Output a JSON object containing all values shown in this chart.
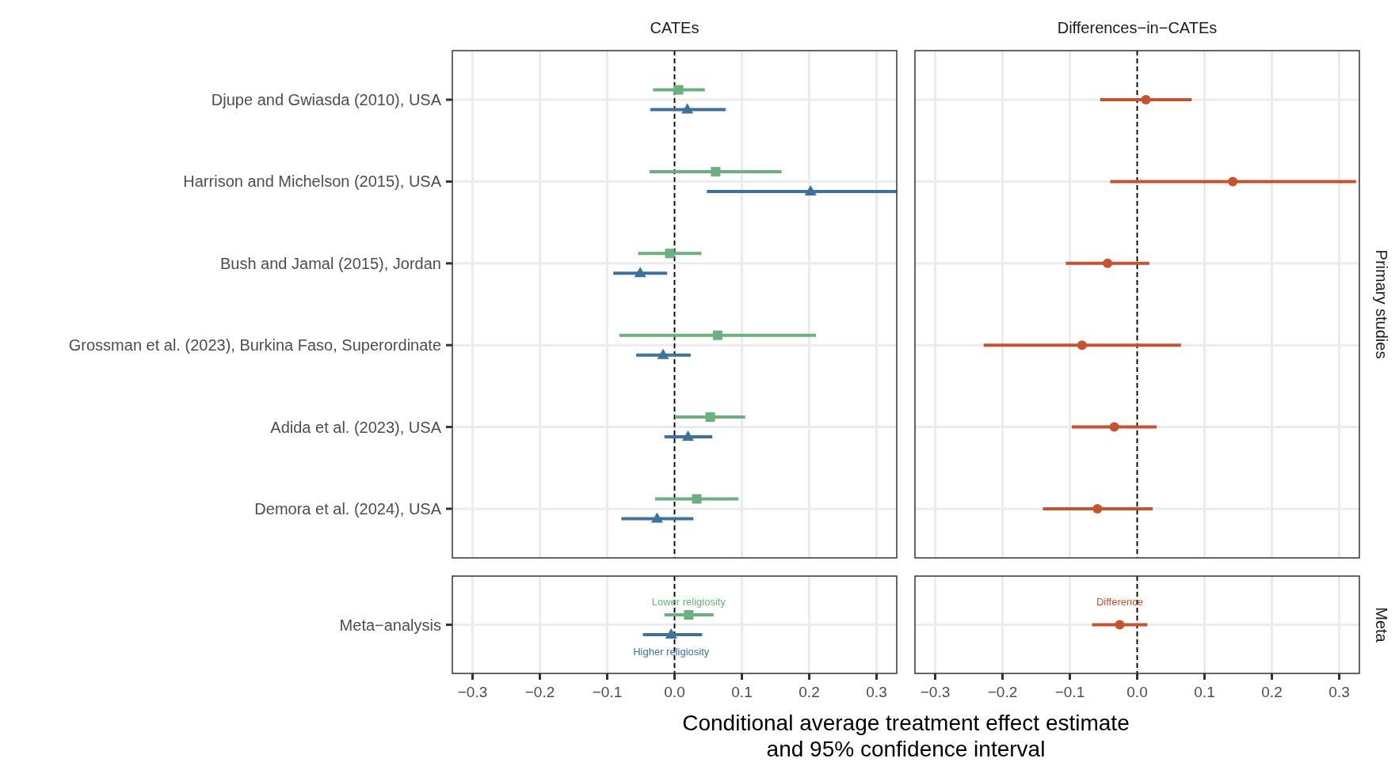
{
  "chart_data": [
    {
      "type": "scatter",
      "orientation": "horizontal",
      "title": "CATEs",
      "categories": [
        "Djupe and Gwiasda (2010), USA",
        "Harrison and Michelson (2015), USA",
        "Bush and Jamal (2015), Jordan",
        "Grossman et al. (2023), Burkina Faso, Superordinate",
        "Adida et al. (2023), USA",
        "Demora et al. (2024), USA"
      ],
      "xticks": [
        {
          "value": -0.3,
          "label": null
        },
        {
          "value": -0.2,
          "label": null
        },
        {
          "value": -0.1,
          "label": null
        },
        {
          "value": 0,
          "label": null
        },
        {
          "value": 0.1,
          "label": null
        },
        {
          "value": 0.2,
          "label": null
        },
        {
          "value": 0.3,
          "label": null
        }
      ],
      "series": [
        {
          "color": "#6cb07f",
          "marker": "square",
          "values": [
            0.006,
            0.061,
            -0.007,
            0.064,
            0.053,
            0.033
          ],
          "errors": [
            [
              -0.032,
              0.045
            ],
            [
              -0.037,
              0.159
            ],
            [
              -0.054,
              0.04
            ],
            [
              -0.082,
              0.21
            ],
            [
              0.001,
              0.105
            ],
            [
              -0.029,
              0.095
            ]
          ]
        },
        {
          "color": "#3f729b",
          "marker": "triangle",
          "values": [
            0.019,
            0.202,
            -0.051,
            -0.017,
            0.02,
            -0.026
          ],
          "errors": [
            [
              -0.036,
              0.076
            ],
            [
              0.048,
              0.33
            ],
            [
              -0.091,
              -0.011
            ],
            [
              -0.057,
              0.024
            ],
            [
              -0.015,
              0.056
            ],
            [
              -0.079,
              0.028
            ]
          ]
        }
      ],
      "xlim": [
        -0.33,
        0.33
      ],
      "tick_labels": "y",
      "grid": true,
      "ref_lines": [
        {
          "axis": "x",
          "value": 0,
          "color": "#000000",
          "line_style": "dashed"
        }
      ]
    },
    {
      "type": "scatter",
      "orientation": "horizontal",
      "title": "Differences−in−CATEs",
      "y2label": "Primary studies",
      "categories": [
        null,
        null,
        null,
        null,
        null,
        null
      ],
      "xticks": [
        {
          "value": -0.3,
          "label": null
        },
        {
          "value": -0.2,
          "label": null
        },
        {
          "value": -0.1,
          "label": null
        },
        {
          "value": 0,
          "label": null
        },
        {
          "value": 0.1,
          "label": null
        },
        {
          "value": 0.2,
          "label": null
        },
        {
          "value": 0.3,
          "label": null
        }
      ],
      "series": [
        {
          "color": "#c4532e",
          "marker": "circle",
          "values": [
            0.013,
            0.142,
            -0.044,
            -0.082,
            -0.034,
            -0.059
          ],
          "errors": [
            [
              -0.055,
              0.081
            ],
            [
              -0.04,
              0.325
            ],
            [
              -0.106,
              0.018
            ],
            [
              -0.228,
              0.065
            ],
            [
              -0.097,
              0.029
            ],
            [
              -0.14,
              0.023
            ]
          ]
        }
      ],
      "xlim": [
        -0.33,
        0.33
      ],
      "tick_labels": false,
      "grid": true,
      "ref_lines": [
        {
          "axis": "x",
          "value": 0,
          "color": "#000000",
          "line_style": "dashed"
        }
      ]
    },
    {
      "type": "scatter",
      "orientation": "horizontal",
      "xlabel": "Conditional average treatment effect estimate\nand 95% confidence interval",
      "categories": [
        "Meta−analysis"
      ],
      "series": [
        {
          "name": "Lower religiosity",
          "color": "#6cb07f",
          "marker": "square",
          "values": [
            0.021
          ],
          "errors": [
            [
              -0.015,
              0.058
            ]
          ]
        },
        {
          "name": "Higher religiosity",
          "color": "#3f729b",
          "marker": "triangle",
          "values": [
            -0.005
          ],
          "errors": [
            [
              -0.047,
              0.041
            ]
          ]
        }
      ],
      "xlim": [
        -0.33,
        0.33
      ],
      "xticks": [
        {
          "value": -0.3,
          "label": "−0.3"
        },
        {
          "value": -0.2,
          "label": "−0.2"
        },
        {
          "value": -0.1,
          "label": "−0.1"
        },
        {
          "value": 0,
          "label": "0.0"
        },
        {
          "value": 0.1,
          "label": "0.1"
        },
        {
          "value": 0.2,
          "label": "0.2"
        },
        {
          "value": 0.3,
          "label": "0.3"
        }
      ],
      "grid": true,
      "ref_lines": [
        {
          "axis": "x",
          "value": 0,
          "color": "#000000",
          "line_style": "dashed"
        }
      ]
    },
    {
      "type": "scatter",
      "orientation": "horizontal",
      "y2label": "Meta",
      "categories": [
        null
      ],
      "series": [
        {
          "name": "Difference",
          "color": "#c4532e",
          "marker": "circle",
          "values": [
            -0.026
          ],
          "errors": [
            [
              -0.067,
              0.015
            ]
          ]
        }
      ],
      "xlim": [
        -0.33,
        0.33
      ],
      "xticks": [
        {
          "value": -0.3,
          "label": "−0.3"
        },
        {
          "value": -0.2,
          "label": "−0.2"
        },
        {
          "value": -0.1,
          "label": "−0.1"
        },
        {
          "value": 0,
          "label": "0.0"
        },
        {
          "value": 0.1,
          "label": "0.1"
        },
        {
          "value": 0.2,
          "label": "0.2"
        },
        {
          "value": 0.3,
          "label": "0.3"
        }
      ],
      "tick_labels": "x",
      "grid": true,
      "ref_lines": [
        {
          "axis": "x",
          "value": 0,
          "color": "#000000",
          "line_style": "dashed"
        }
      ]
    }
  ]
}
